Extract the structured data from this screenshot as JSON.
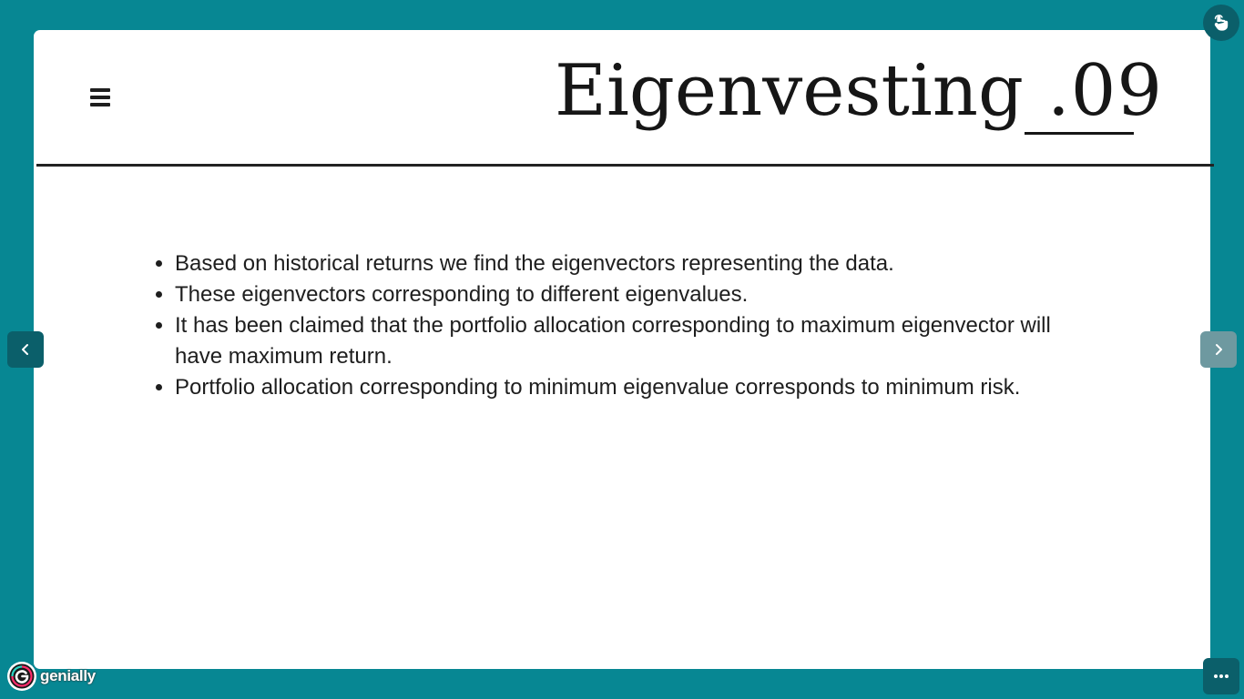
{
  "slide": {
    "title": "Eigenvesting",
    "title_suffix": ".09",
    "bullets": [
      "Based on historical returns we find the eigenvectors representing the data.",
      "These eigenvectors corresponding to different eigenvalues.",
      "It has been claimed that the portfolio allocation corresponding to maximum eigenvector will have maximum return.",
      "Portfolio allocation corresponding to minimum eigenvalue corresponds to minimum risk."
    ]
  },
  "navigation": {
    "prev_icon": "chevron-left-icon",
    "next_icon": "chevron-right-icon"
  },
  "toolbar": {
    "menu_icon": "hamburger-menu-icon",
    "interactivity_icon": "hand-pointer-icon",
    "more_icon": "ellipsis-icon"
  },
  "brand": {
    "name": "genially"
  },
  "colors": {
    "background": "#078793",
    "slide": "#ffffff",
    "button_dark": "#0b5f6a",
    "button_light": "#6e99a0",
    "text": "#1e1e1e"
  }
}
